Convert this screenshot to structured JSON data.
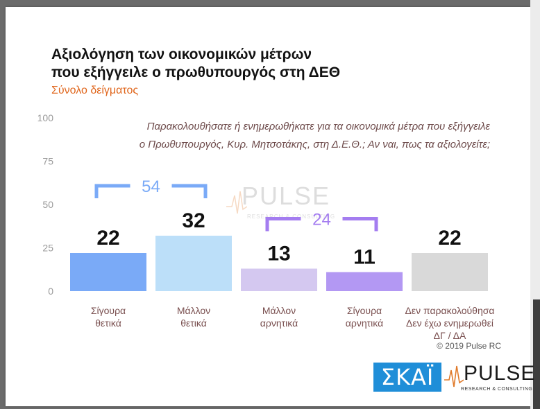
{
  "header": {
    "title_line1": "Αξιολόγηση των οικονομικών μέτρων",
    "title_line2": "που εξήγγειλε ο πρωθυπουργός στη ΔΕΘ",
    "subtitle": "Σύνολο δείγματος"
  },
  "question": {
    "line1": "Παρακολουθήσατε ή ενημερωθήκατε για τα οικονομικά μέτρα που εξήγγειλε",
    "line2": "ο Πρωθυπουργός, Κυρ. Μητσοτάκης, στη Δ.Ε.Θ.; Αν ναι, πως τα αξιολογείτε;"
  },
  "copyright": "© 2019 Pulse RC",
  "logos": {
    "skai": "ΣΚΑΪ",
    "pulse": "PULSE",
    "pulse_sub": "RESEARCH & CONSULTING",
    "watermark": "PULSE",
    "watermark_sub": "RESEARCH & CONSULTING"
  },
  "chart_data": {
    "type": "bar",
    "categories": [
      [
        "Σίγουρα",
        "θετικά"
      ],
      [
        "Μάλλον",
        "θετικά"
      ],
      [
        "Μάλλον",
        "αρνητικά"
      ],
      [
        "Σίγουρα",
        "αρνητικά"
      ],
      [
        "Δεν παρακολούθησα",
        "Δεν έχω ενημερωθεί",
        "ΔΓ / ΔΑ"
      ]
    ],
    "values": [
      22,
      32,
      13,
      11,
      22
    ],
    "bar_colors": [
      "#7aaaf7",
      "#bcdff9",
      "#d4c8f0",
      "#b398f3",
      "#d9d9d9"
    ],
    "ylim": [
      0,
      100
    ],
    "yticks": [
      0,
      25,
      50,
      75,
      100
    ],
    "grid": false,
    "groups": [
      {
        "label": "54",
        "from": 0,
        "to": 1,
        "color": "#7aaaf7"
      },
      {
        "label": "24",
        "from": 2,
        "to": 3,
        "color": "#a47df0"
      }
    ]
  }
}
